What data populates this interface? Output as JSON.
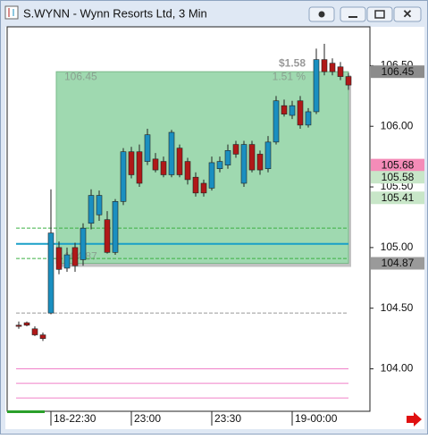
{
  "chart_data": {
    "type": "candlestick",
    "title": "S.WYNN - Wynn Resorts Ltd, 3 Min",
    "categories": [
      null,
      null,
      null,
      null,
      "18-22:30",
      null,
      null,
      null,
      null,
      null,
      null,
      null,
      null,
      null,
      "23:00",
      null,
      null,
      null,
      null,
      null,
      null,
      null,
      null,
      null,
      "23:30",
      null,
      null,
      null,
      null,
      null,
      null,
      null,
      null,
      null,
      "19-00:00",
      null,
      null,
      null,
      null,
      null,
      null,
      null
    ],
    "open": [
      104.36,
      104.38,
      104.33,
      104.28,
      104.46,
      105.0,
      104.83,
      105.0,
      104.9,
      105.2,
      105.27,
      105.23,
      104.96,
      105.38,
      105.79,
      105.79,
      105.71,
      105.73,
      105.71,
      105.6,
      105.82,
      105.71,
      105.58,
      105.53,
      105.49,
      105.65,
      105.68,
      105.85,
      105.53,
      105.85,
      105.77,
      105.65,
      105.87,
      106.17,
      106.09,
      106.21,
      106.01,
      106.12,
      106.55,
      106.52,
      106.49,
      106.41
    ],
    "high": [
      104.39,
      104.39,
      104.35,
      104.3,
      105.48,
      105.05,
      105.0,
      105.04,
      105.2,
      105.48,
      105.47,
      105.3,
      105.4,
      105.82,
      105.83,
      105.85,
      105.98,
      105.78,
      105.75,
      105.97,
      105.85,
      105.74,
      105.62,
      105.56,
      105.75,
      105.75,
      105.85,
      105.88,
      105.88,
      105.88,
      105.8,
      105.92,
      106.25,
      106.22,
      106.21,
      106.25,
      106.15,
      106.64,
      106.68,
      106.56,
      106.53,
      106.44
    ],
    "low": [
      104.33,
      104.35,
      104.27,
      104.23,
      104.45,
      104.78,
      104.8,
      104.8,
      104.85,
      105.15,
      105.22,
      104.95,
      104.94,
      105.35,
      105.57,
      105.5,
      105.68,
      105.62,
      105.58,
      105.58,
      105.58,
      105.52,
      105.42,
      105.42,
      105.47,
      105.62,
      105.65,
      105.74,
      105.5,
      105.62,
      105.6,
      105.62,
      105.85,
      106.08,
      106.06,
      105.98,
      105.99,
      106.1,
      106.42,
      106.42,
      106.38,
      106.3
    ],
    "close": [
      104.35,
      104.36,
      104.28,
      104.25,
      105.12,
      104.82,
      104.94,
      104.85,
      105.16,
      105.43,
      105.43,
      104.96,
      105.38,
      105.79,
      105.6,
      105.53,
      105.93,
      105.64,
      105.6,
      105.95,
      105.6,
      105.56,
      105.45,
      105.45,
      105.7,
      105.71,
      105.8,
      105.77,
      105.85,
      105.64,
      105.64,
      105.87,
      106.21,
      106.1,
      106.17,
      106.01,
      106.12,
      106.55,
      106.45,
      106.45,
      106.41,
      106.34
    ],
    "up_color": "#1a8fc0",
    "down_color": "#b01818",
    "ylim": [
      103.65,
      106.82
    ],
    "yticks": [
      {
        "value": 104,
        "label": "104.00"
      },
      {
        "value": 104.5,
        "label": "104.50"
      },
      {
        "value": 105,
        "label": "105.00"
      },
      {
        "value": 105.5,
        "label": "105.50"
      },
      {
        "value": 106,
        "label": "106.00"
      },
      {
        "value": 106.5,
        "label": "106.50"
      }
    ],
    "levels": [
      {
        "value": 105.16,
        "color": "#3cb043",
        "dash": true
      },
      {
        "value": 105.03,
        "color": "#1aa0c8",
        "dash": false
      },
      {
        "value": 104.91,
        "color": "#3cb043",
        "dash": true
      },
      {
        "value": 104.46,
        "color": "#999999",
        "dash": true
      },
      {
        "value": 104.0,
        "color": "#f080c8",
        "dash": false
      },
      {
        "value": 103.88,
        "color": "#f080c8",
        "dash": false
      },
      {
        "value": 103.76,
        "color": "#f080c8",
        "dash": false
      }
    ],
    "measure": {
      "high": 106.45,
      "low": 104.87,
      "change": {
        "value": 1.58,
        "label": "$1.58"
      },
      "percent": {
        "value": 1.51,
        "label": "1.51 %"
      }
    },
    "price_tags": [
      {
        "value": 106.45,
        "color": "#8c8c8c"
      },
      {
        "value": 105.68,
        "color": "#f48cb8"
      },
      {
        "value": 105.58,
        "color": "#c8e6c8"
      },
      {
        "value": 105.41,
        "color": "#c8e6c8"
      },
      {
        "value": 104.87,
        "color": "#9a9a9a"
      }
    ]
  }
}
